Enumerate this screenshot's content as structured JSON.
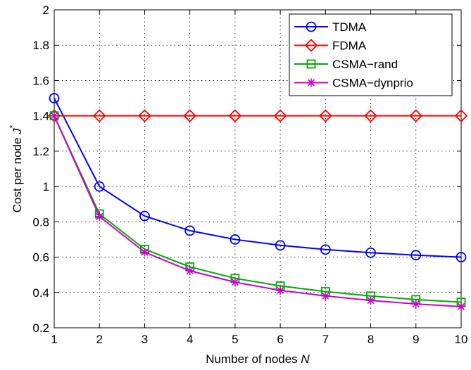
{
  "chart_data": {
    "type": "line",
    "title": "",
    "xlabel": "Number of nodes",
    "xlabel_var": "N",
    "ylabel": "Cost per node",
    "ylabel_var": "J",
    "ylabel_sup": "*",
    "x": [
      1,
      2,
      3,
      4,
      5,
      6,
      7,
      8,
      9,
      10
    ],
    "xlim": [
      1,
      10
    ],
    "ylim": [
      0.2,
      2
    ],
    "xticks": [
      "1",
      "2",
      "3",
      "4",
      "5",
      "6",
      "7",
      "8",
      "9",
      "10"
    ],
    "yticks": [
      "0.2",
      "0.4",
      "0.6",
      "0.8",
      "1",
      "1.2",
      "1.4",
      "1.6",
      "1.8",
      "2"
    ],
    "grid": true,
    "legend_position": "top-right",
    "series": [
      {
        "name": "TDMA",
        "color": "#0000ff",
        "marker": "circle",
        "values": [
          1.5,
          1.0,
          0.833,
          0.75,
          0.7,
          0.667,
          0.643,
          0.625,
          0.611,
          0.6
        ]
      },
      {
        "name": "FDMA",
        "color": "#ff0000",
        "marker": "diamond",
        "values": [
          1.4,
          1.4,
          1.4,
          1.4,
          1.4,
          1.4,
          1.4,
          1.4,
          1.4,
          1.4
        ]
      },
      {
        "name": "CSMA−rand",
        "color": "#00aa00",
        "marker": "square",
        "values": [
          1.4,
          0.845,
          0.645,
          0.545,
          0.48,
          0.437,
          0.405,
          0.38,
          0.36,
          0.345
        ]
      },
      {
        "name": "CSMA−dynprio",
        "color": "#cc00cc",
        "marker": "asterisk",
        "values": [
          1.4,
          0.83,
          0.628,
          0.523,
          0.458,
          0.412,
          0.38,
          0.355,
          0.335,
          0.32
        ]
      }
    ]
  }
}
